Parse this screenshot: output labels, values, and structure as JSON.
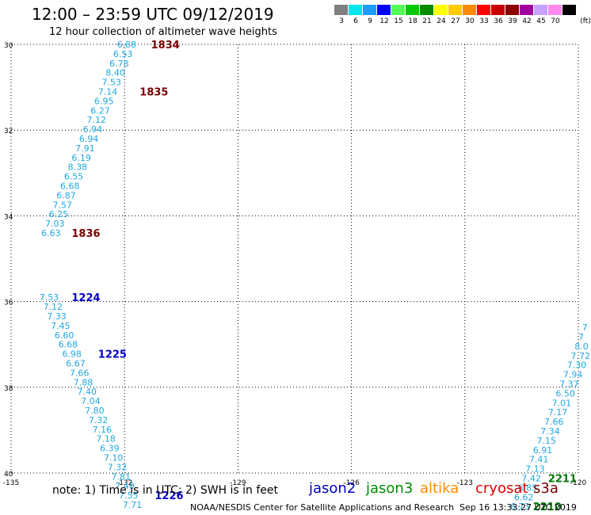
{
  "header": {
    "title": "12:00 – 23:59 UTC 09/12/2019",
    "subtitle": "12 hour collection of altimeter wave heights"
  },
  "colorbar": {
    "unit_label": "(ft)",
    "bins": [
      {
        "label": "3",
        "color": "#7f7f7f"
      },
      {
        "label": "6",
        "color": "#00e5ee"
      },
      {
        "label": "9",
        "color": "#1c9cff"
      },
      {
        "label": "12",
        "color": "#0000ff"
      },
      {
        "label": "15",
        "color": "#55ff55"
      },
      {
        "label": "18",
        "color": "#00c800"
      },
      {
        "label": "21",
        "color": "#008c00"
      },
      {
        "label": "24",
        "color": "#ffff00"
      },
      {
        "label": "27",
        "color": "#ffcc00"
      },
      {
        "label": "30",
        "color": "#ff8c00"
      },
      {
        "label": "33",
        "color": "#ff0000"
      },
      {
        "label": "36",
        "color": "#c80000"
      },
      {
        "label": "39",
        "color": "#8b0000"
      },
      {
        "label": "42",
        "color": "#a000a0"
      },
      {
        "label": "45",
        "color": "#c8a0ff"
      },
      {
        "label": "70",
        "color": "#ff88ee"
      },
      {
        "label": "",
        "color": "#000000"
      }
    ]
  },
  "map": {
    "lat_labels": [
      "30",
      "32",
      "34",
      "36",
      "38",
      "40"
    ],
    "lon_labels": [
      "-135",
      "-132",
      "-129",
      "-126",
      "-123",
      "-120"
    ],
    "point_color": "#1fa8e0",
    "tracks": [
      {
        "points": [
          {
            "lat": 30.0,
            "lon": -132.2,
            "swh": "6.88"
          },
          {
            "lat": 30.22,
            "lon": -132.3,
            "swh": "6.53"
          },
          {
            "lat": 30.44,
            "lon": -132.4,
            "swh": "6.78"
          },
          {
            "lat": 30.66,
            "lon": -132.5,
            "swh": "8.40"
          },
          {
            "lat": 30.88,
            "lon": -132.6,
            "swh": "7.53"
          },
          {
            "lat": 31.1,
            "lon": -132.7,
            "swh": "7.14"
          },
          {
            "lat": 31.32,
            "lon": -132.8,
            "swh": "6.95"
          },
          {
            "lat": 31.54,
            "lon": -132.9,
            "swh": "6.27"
          },
          {
            "lat": 31.76,
            "lon": -133.0,
            "swh": "7.12"
          },
          {
            "lat": 31.98,
            "lon": -133.1,
            "swh": "6.94"
          },
          {
            "lat": 32.2,
            "lon": -133.2,
            "swh": "6.94"
          },
          {
            "lat": 32.42,
            "lon": -133.3,
            "swh": "7.91"
          },
          {
            "lat": 32.64,
            "lon": -133.4,
            "swh": "6.19"
          },
          {
            "lat": 32.86,
            "lon": -133.5,
            "swh": "8.38"
          },
          {
            "lat": 33.08,
            "lon": -133.6,
            "swh": "6.55"
          },
          {
            "lat": 33.3,
            "lon": -133.7,
            "swh": "6.68"
          },
          {
            "lat": 33.52,
            "lon": -133.8,
            "swh": "6.87"
          },
          {
            "lat": 33.74,
            "lon": -133.9,
            "swh": "7.57"
          },
          {
            "lat": 33.96,
            "lon": -134.0,
            "swh": "6.25"
          },
          {
            "lat": 34.18,
            "lon": -134.1,
            "swh": "7.03"
          },
          {
            "lat": 34.4,
            "lon": -134.2,
            "swh": "6.63"
          }
        ]
      },
      {
        "points": [
          {
            "lat": 35.9,
            "lon": -134.25,
            "swh": "7.53"
          },
          {
            "lat": 36.12,
            "lon": -134.15,
            "swh": "7.12"
          },
          {
            "lat": 36.34,
            "lon": -134.05,
            "swh": "7.33"
          },
          {
            "lat": 36.56,
            "lon": -133.95,
            "swh": "7.45"
          },
          {
            "lat": 36.78,
            "lon": -133.85,
            "swh": "6.60"
          },
          {
            "lat": 37.0,
            "lon": -133.75,
            "swh": "6.68"
          },
          {
            "lat": 37.22,
            "lon": -133.65,
            "swh": "6.98"
          },
          {
            "lat": 37.44,
            "lon": -133.55,
            "swh": "6.67"
          },
          {
            "lat": 37.66,
            "lon": -133.45,
            "swh": "7.66"
          },
          {
            "lat": 37.88,
            "lon": -133.35,
            "swh": "7.88"
          },
          {
            "lat": 38.1,
            "lon": -133.25,
            "swh": "7.40"
          },
          {
            "lat": 38.32,
            "lon": -133.15,
            "swh": "7.04"
          },
          {
            "lat": 38.54,
            "lon": -133.05,
            "swh": "7.80"
          },
          {
            "lat": 38.76,
            "lon": -132.95,
            "swh": "7.32"
          },
          {
            "lat": 38.98,
            "lon": -132.85,
            "swh": "7.16"
          },
          {
            "lat": 39.2,
            "lon": -132.75,
            "swh": "7.18"
          },
          {
            "lat": 39.42,
            "lon": -132.65,
            "swh": "6.39"
          },
          {
            "lat": 39.64,
            "lon": -132.55,
            "swh": "7.10"
          },
          {
            "lat": 39.86,
            "lon": -132.45,
            "swh": "7.32"
          },
          {
            "lat": 40.08,
            "lon": -132.35,
            "swh": "7.81"
          },
          {
            "lat": 40.3,
            "lon": -132.25,
            "swh": "7.40"
          },
          {
            "lat": 40.52,
            "lon": -132.15,
            "swh": "7.55"
          },
          {
            "lat": 40.74,
            "lon": -132.05,
            "swh": "7.71"
          }
        ]
      },
      {
        "points": [
          {
            "lat": 36.6,
            "lon": -119.9,
            "swh": "7"
          },
          {
            "lat": 36.82,
            "lon": -120.0,
            "swh": "7"
          },
          {
            "lat": 37.04,
            "lon": -120.1,
            "swh": "8.0"
          },
          {
            "lat": 37.26,
            "lon": -120.2,
            "swh": "7.72"
          },
          {
            "lat": 37.48,
            "lon": -120.3,
            "swh": "7.30"
          },
          {
            "lat": 37.7,
            "lon": -120.4,
            "swh": "7.94"
          },
          {
            "lat": 37.92,
            "lon": -120.5,
            "swh": "7.37"
          },
          {
            "lat": 38.14,
            "lon": -120.6,
            "swh": "6.50"
          },
          {
            "lat": 38.36,
            "lon": -120.7,
            "swh": "7.01"
          },
          {
            "lat": 38.58,
            "lon": -120.8,
            "swh": "7.17"
          },
          {
            "lat": 38.8,
            "lon": -120.9,
            "swh": "7.66"
          },
          {
            "lat": 39.02,
            "lon": -121.0,
            "swh": "7.34"
          },
          {
            "lat": 39.24,
            "lon": -121.1,
            "swh": "7.15"
          },
          {
            "lat": 39.46,
            "lon": -121.2,
            "swh": "6.91"
          },
          {
            "lat": 39.68,
            "lon": -121.3,
            "swh": "7.41"
          },
          {
            "lat": 39.9,
            "lon": -121.4,
            "swh": "7.13"
          },
          {
            "lat": 40.12,
            "lon": -121.5,
            "swh": "7.42"
          },
          {
            "lat": 40.34,
            "lon": -121.6,
            "swh": "6.85"
          },
          {
            "lat": 40.56,
            "lon": -121.7,
            "swh": "6.62"
          },
          {
            "lat": 40.78,
            "lon": -121.8,
            "swh": "6.73"
          }
        ]
      }
    ],
    "time_labels": [
      {
        "text": "1834",
        "color": "#7a0000",
        "lat": 30.0,
        "lon": -131.3
      },
      {
        "text": "1835",
        "color": "#7a0000",
        "lat": 31.1,
        "lon": -131.6
      },
      {
        "text": "1836",
        "color": "#7a0000",
        "lat": 34.4,
        "lon": -133.4
      },
      {
        "text": "1224",
        "color": "#0000c8",
        "lat": 35.9,
        "lon": -133.4
      },
      {
        "text": "1225",
        "color": "#0000c8",
        "lat": 37.22,
        "lon": -132.7
      },
      {
        "text": "1226",
        "color": "#0000c8",
        "lat": 40.52,
        "lon": -131.2
      },
      {
        "text": "2211",
        "color": "#007800",
        "lat": 40.12,
        "lon": -120.8
      },
      {
        "text": "2210",
        "color": "#007800",
        "lat": 40.78,
        "lon": -121.2
      }
    ]
  },
  "footer": {
    "note": "note:  1) Time is in UTC;  2) SWH is in feet",
    "satellites": [
      {
        "name": "jason2",
        "color": "#0000c8"
      },
      {
        "name": "jason3",
        "color": "#008c00"
      },
      {
        "name": "altika",
        "color": "#ff8c00"
      },
      {
        "name": "cryosat",
        "color": "#e00000"
      },
      {
        "name": "s3a",
        "color": "#7a0000"
      }
    ],
    "credit": "NOAA/NESDIS Center for Satellite Applications and Research",
    "timestamp": "Sep 16 13:33:27 UTC 2019"
  }
}
